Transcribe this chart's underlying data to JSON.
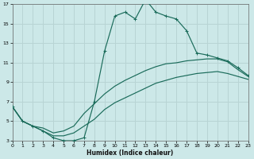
{
  "xlabel": "Humidex (Indice chaleur)",
  "bg_color": "#cce8e8",
  "grid_color": "#b8d4d4",
  "line_color": "#1a6b5a",
  "xlim": [
    0,
    23
  ],
  "ylim": [
    3,
    17
  ],
  "xticks": [
    0,
    1,
    2,
    3,
    4,
    5,
    6,
    7,
    8,
    9,
    10,
    11,
    12,
    13,
    14,
    15,
    16,
    17,
    18,
    19,
    20,
    21,
    22,
    23
  ],
  "yticks": [
    3,
    5,
    7,
    9,
    11,
    13,
    15,
    17
  ],
  "line_upper_x": [
    0,
    1,
    2,
    3,
    4,
    5,
    6,
    7,
    8,
    9,
    10,
    11,
    12,
    13,
    14,
    15,
    16,
    17,
    18,
    19,
    20,
    21,
    22,
    23
  ],
  "line_upper_y": [
    6.5,
    5.0,
    4.5,
    4.0,
    3.3,
    3.0,
    3.0,
    3.3,
    7.0,
    12.2,
    15.8,
    16.2,
    15.5,
    17.5,
    16.2,
    15.8,
    15.5,
    14.3,
    12.0,
    11.8,
    11.5,
    11.2,
    10.5,
    9.7
  ],
  "line_mid_x": [
    0,
    1,
    2,
    3,
    4,
    5,
    6,
    7,
    8,
    9,
    10,
    11,
    12,
    13,
    14,
    15,
    16,
    17,
    18,
    19,
    20,
    21,
    22,
    23
  ],
  "line_mid_y": [
    6.5,
    5.0,
    4.5,
    4.3,
    3.8,
    4.0,
    4.5,
    5.8,
    6.8,
    7.8,
    8.6,
    9.2,
    9.7,
    10.2,
    10.6,
    10.9,
    11.0,
    11.2,
    11.3,
    11.4,
    11.4,
    11.1,
    10.3,
    9.6
  ],
  "line_low_x": [
    0,
    1,
    2,
    3,
    4,
    5,
    6,
    7,
    8,
    9,
    10,
    11,
    12,
    13,
    14,
    15,
    16,
    17,
    18,
    19,
    20,
    21,
    22,
    23
  ],
  "line_low_y": [
    6.5,
    5.0,
    4.5,
    4.0,
    3.5,
    3.5,
    3.8,
    4.5,
    5.2,
    6.2,
    6.9,
    7.4,
    7.9,
    8.4,
    8.9,
    9.2,
    9.5,
    9.7,
    9.9,
    10.0,
    10.1,
    9.9,
    9.6,
    9.3
  ]
}
